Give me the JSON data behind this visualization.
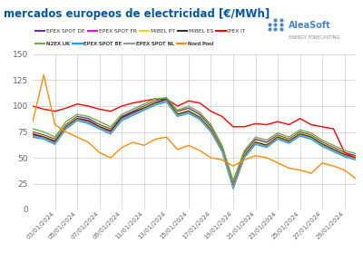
{
  "title": "mercados europeos de electricidad [€/MWh]",
  "title_color": "#0055a5",
  "background_color": "#ffffff",
  "grid_color": "#cccccc",
  "ylim": [
    0,
    150
  ],
  "yticks": [
    0,
    25,
    50,
    75,
    100,
    125,
    150
  ],
  "dates": [
    "01/01/2024",
    "02/01/2024",
    "03/01/2024",
    "04/01/2024",
    "05/01/2024",
    "06/01/2024",
    "07/01/2024",
    "08/01/2024",
    "09/01/2024",
    "10/01/2024",
    "11/01/2024",
    "12/01/2024",
    "13/01/2024",
    "14/01/2024",
    "15/01/2024",
    "16/01/2024",
    "17/01/2024",
    "18/01/2024",
    "19/01/2024",
    "20/01/2024",
    "21/01/2024",
    "22/01/2024",
    "23/01/2024",
    "24/01/2024",
    "25/01/2024",
    "26/01/2024",
    "27/01/2024",
    "28/01/2024",
    "29/01/2024",
    "30/01/2024"
  ],
  "xtick_dates": [
    "03/01/2024",
    "05/01/2024",
    "07/01/2024",
    "09/01/2024",
    "11/01/2024",
    "13/01/2024",
    "15/01/2024",
    "17/01/2024",
    "19/01/2024",
    "21/01/2024",
    "23/01/2024",
    "25/01/2024",
    "27/01/2024",
    "29/01/2024"
  ],
  "xtick_indices": [
    2,
    4,
    6,
    8,
    10,
    12,
    14,
    16,
    18,
    20,
    22,
    24,
    26,
    28
  ],
  "series": {
    "EPEX SPOT DE": {
      "color": "#7030a0",
      "lw": 1.0,
      "values": [
        75,
        72,
        68,
        82,
        90,
        88,
        82,
        78,
        90,
        95,
        100,
        105,
        108,
        95,
        98,
        92,
        80,
        60,
        25,
        55,
        68,
        65,
        72,
        68,
        75,
        72,
        65,
        60,
        55,
        52
      ]
    },
    "EPEX SPOT FR": {
      "color": "#ff00ff",
      "lw": 1.0,
      "values": [
        72,
        70,
        65,
        80,
        88,
        85,
        80,
        75,
        88,
        93,
        98,
        103,
        106,
        92,
        95,
        89,
        77,
        58,
        22,
        52,
        65,
        62,
        70,
        66,
        73,
        70,
        63,
        58,
        53,
        50
      ]
    },
    "MIBEL PT": {
      "color": "#e0e000",
      "lw": 1.0,
      "values": [
        74,
        71,
        67,
        81,
        89,
        86,
        81,
        77,
        89,
        94,
        99,
        104,
        107,
        93,
        96,
        90,
        78,
        59,
        23,
        53,
        66,
        63,
        71,
        67,
        74,
        71,
        64,
        59,
        54,
        51
      ]
    },
    "MIBEL ES": {
      "color": "#303030",
      "lw": 1.0,
      "values": [
        73,
        70,
        66,
        80,
        88,
        86,
        80,
        76,
        89,
        94,
        98,
        103,
        107,
        92,
        95,
        89,
        77,
        58,
        22,
        52,
        65,
        62,
        70,
        66,
        73,
        70,
        63,
        58,
        53,
        50
      ]
    },
    "IPEX IT": {
      "color": "#ff0000",
      "lw": 1.0,
      "values": [
        100,
        97,
        95,
        98,
        102,
        100,
        97,
        95,
        100,
        103,
        105,
        107,
        107,
        100,
        105,
        103,
        95,
        90,
        80,
        80,
        83,
        82,
        85,
        82,
        88,
        82,
        80,
        78,
        55,
        50
      ]
    },
    "N2EX UK": {
      "color": "#70ad47",
      "lw": 1.0,
      "values": [
        78,
        75,
        70,
        85,
        92,
        90,
        85,
        80,
        92,
        97,
        102,
        107,
        108,
        96,
        100,
        94,
        82,
        62,
        28,
        57,
        70,
        67,
        74,
        70,
        77,
        74,
        67,
        62,
        57,
        54
      ]
    },
    "EPEX SPOT BE": {
      "color": "#00aaff",
      "lw": 1.0,
      "values": [
        70,
        68,
        63,
        78,
        86,
        83,
        78,
        73,
        86,
        91,
        96,
        101,
        104,
        90,
        93,
        87,
        75,
        56,
        20,
        50,
        63,
        60,
        68,
        64,
        71,
        68,
        61,
        56,
        51,
        48
      ]
    },
    "EPEX SPOT NL": {
      "color": "#999999",
      "lw": 1.0,
      "values": [
        71,
        69,
        64,
        79,
        87,
        84,
        79,
        74,
        87,
        92,
        97,
        102,
        105,
        91,
        94,
        88,
        76,
        57,
        21,
        51,
        64,
        61,
        69,
        65,
        72,
        69,
        62,
        57,
        52,
        49
      ]
    },
    "Nord Pool": {
      "color": "#ff8c00",
      "lw": 1.0,
      "values": [
        85,
        130,
        82,
        75,
        70,
        65,
        55,
        50,
        60,
        65,
        62,
        68,
        70,
        58,
        62,
        57,
        50,
        48,
        42,
        48,
        52,
        50,
        45,
        40,
        38,
        35,
        45,
        42,
        38,
        30
      ]
    }
  },
  "logo_text": "AleaSoft",
  "logo_sub": "ENERGY FORECASTING",
  "logo_color": "#4a86c8"
}
